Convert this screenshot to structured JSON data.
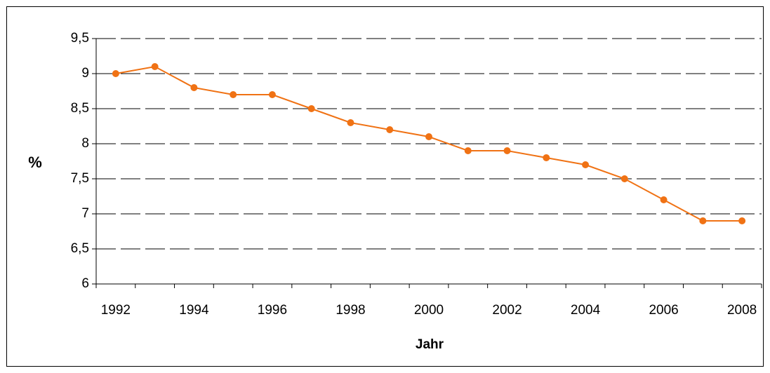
{
  "chart_data": {
    "type": "line",
    "y_label": "%",
    "x_label": "Jahr",
    "categories": [
      "1992",
      null,
      "1994",
      null,
      "1996",
      null,
      "1998",
      null,
      "2000",
      null,
      "2002",
      null,
      "2004",
      null,
      "2006",
      null,
      "2008"
    ],
    "series": [
      {
        "name": "%",
        "color": "#f07214",
        "values": [
          9.0,
          9.1,
          8.8,
          8.7,
          8.7,
          8.5,
          8.3,
          8.2,
          8.1,
          7.9,
          7.9,
          7.8,
          7.7,
          7.5,
          7.2,
          6.9,
          6.9
        ]
      }
    ],
    "ylim": [
      6,
      9.5
    ],
    "yticks": [
      6,
      {
        "value": 6.5,
        "label": "6,5"
      },
      7,
      {
        "value": 7.5,
        "label": "7,5"
      },
      8,
      {
        "value": 8.5,
        "label": "8,5"
      },
      9,
      {
        "value": 9.5,
        "label": "9,5"
      }
    ],
    "grid": true
  }
}
